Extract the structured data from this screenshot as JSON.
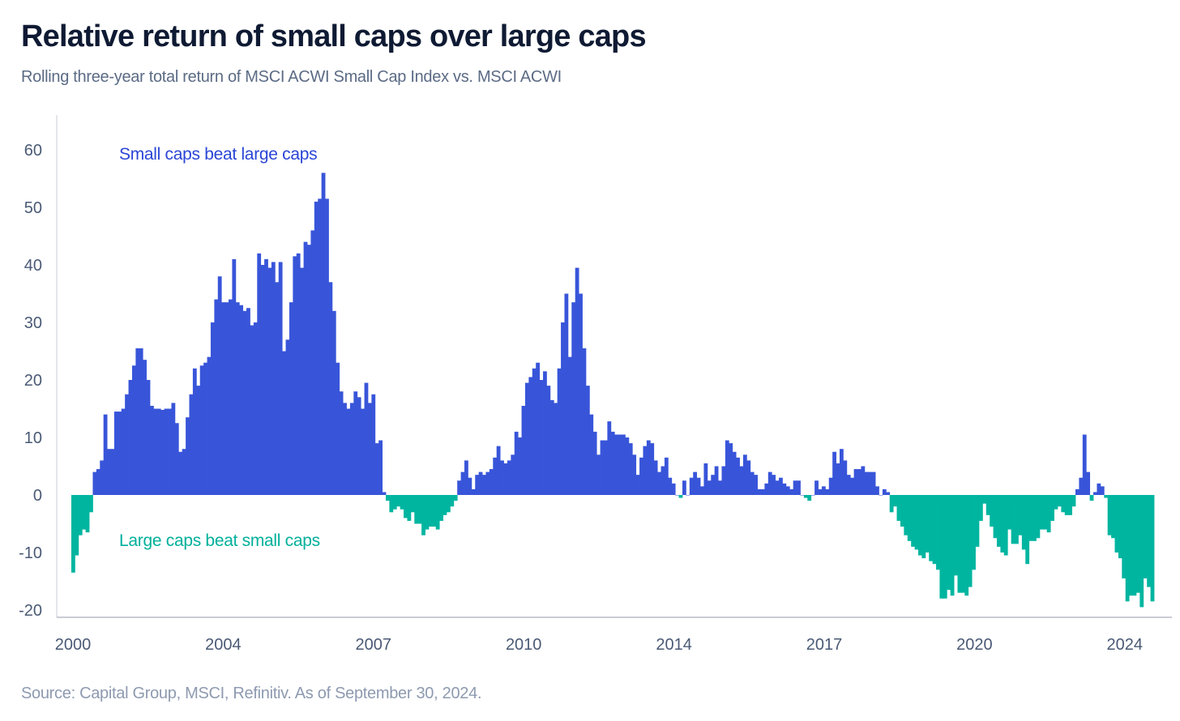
{
  "chart_data": {
    "type": "bar",
    "title": "Relative return of small caps over large caps",
    "subtitle": "Rolling three-year total return of MSCI ACWI Small Cap Index vs. MSCI ACWI",
    "source": "Source: Capital Group, MSCI, Refinitiv. As of September 30, 2024.",
    "xlabel": "",
    "ylabel": "",
    "ylim": [
      -20,
      60
    ],
    "yticks": [
      "60",
      "50",
      "40",
      "30",
      "20",
      "10",
      "0",
      "-10",
      "-20"
    ],
    "ytick_values": [
      60,
      50,
      40,
      30,
      20,
      10,
      0,
      -10,
      -20
    ],
    "xticks": [
      "2000",
      "2004",
      "2007",
      "2010",
      "2014",
      "2017",
      "2020",
      "2024"
    ],
    "annotations": {
      "positive": "Small caps beat large caps",
      "negative": "Large caps beat small caps"
    },
    "colors": {
      "positive": "#3855D9",
      "negative": "#00B5A0"
    },
    "frequency": "monthly, 2000 to Sep 2024 (approximate readings)",
    "values": [
      -13.5,
      -10.5,
      -7,
      -6,
      -6.5,
      -3,
      4,
      4.5,
      6,
      14,
      8,
      8,
      14.5,
      14.5,
      15,
      17.5,
      20,
      22.5,
      25.5,
      25.5,
      23.5,
      20,
      15.5,
      15,
      15,
      14.8,
      15,
      15,
      16,
      12.5,
      7.5,
      8,
      13.5,
      17.5,
      22,
      19,
      22.5,
      23,
      24,
      30,
      34,
      38,
      33.5,
      33.5,
      34,
      41,
      33.5,
      33,
      32,
      32.5,
      29.5,
      30,
      42,
      40,
      41,
      39.5,
      40.5,
      37,
      40.5,
      25,
      27,
      33.5,
      41.5,
      42,
      39.5,
      44,
      43.5,
      46,
      51,
      51.5,
      56,
      51.5,
      37,
      32,
      23,
      18,
      16,
      15,
      16,
      18,
      17,
      15,
      19.5,
      16,
      17.5,
      9,
      9.5,
      0.5,
      -1,
      -3,
      -2.5,
      -2,
      -2.5,
      -4,
      -4.5,
      -3,
      -5,
      -5,
      -7,
      -6,
      -5.5,
      -5.5,
      -6,
      -4.5,
      -3.5,
      -3,
      -2,
      -1,
      2.5,
      4,
      6,
      3,
      1,
      3.5,
      4,
      3.5,
      4,
      4.5,
      6.5,
      8.5,
      6,
      5.5,
      6,
      7,
      11,
      10,
      15.5,
      19.5,
      20.5,
      22,
      23,
      20,
      21.5,
      19,
      16.5,
      16,
      22,
      30,
      35,
      24,
      33.5,
      39.5,
      35,
      25.5,
      19,
      14,
      11,
      7,
      9.5,
      9.5,
      12.8,
      11,
      10.5,
      10.5,
      10.5,
      10,
      9,
      7,
      3.5,
      6.5,
      8.5,
      9.5,
      9,
      6,
      4,
      5,
      6.5,
      3,
      2,
      0,
      -0.5,
      2.5,
      0,
      3,
      4,
      3,
      1.5,
      5.5,
      2.5,
      3.5,
      5,
      2.5,
      5,
      9.5,
      9,
      7.5,
      6.5,
      5,
      7,
      6,
      4,
      3.5,
      1,
      1,
      2,
      4,
      3.5,
      2.5,
      3,
      2,
      1.5,
      1,
      2.5,
      2.5,
      0,
      -0.5,
      -1,
      0,
      2.5,
      1,
      1.5,
      1,
      3,
      7.5,
      5.5,
      8,
      6,
      3.5,
      3,
      4.5,
      4.5,
      5,
      4,
      4,
      4,
      1.5,
      0,
      1,
      0.5,
      -3,
      -2,
      -4.5,
      -5.5,
      -7,
      -8,
      -9,
      -9.5,
      -10.5,
      -11,
      -10,
      -11.5,
      -12,
      -13,
      -18,
      -18,
      -16.5,
      -17.5,
      -14,
      -17,
      -17,
      -17.5,
      -16,
      -13,
      -9,
      -4.5,
      -1.5,
      -3.5,
      -5.5,
      -7.5,
      -9,
      -10,
      -10.5,
      -6,
      -8.5,
      -8.5,
      -7,
      -9.5,
      -12,
      -8,
      -8,
      -7.5,
      -6,
      -6,
      -6.5,
      -4.5,
      -2.5,
      -2,
      -3,
      -3.5,
      -3.5,
      -2,
      1,
      3,
      10.5,
      4,
      -1,
      0.5,
      2,
      1.5,
      -0.5,
      -7,
      -7.5,
      -10,
      -11,
      -14.5,
      -18.5,
      -17.5,
      -17.5,
      -17,
      -19.5,
      -14.5,
      -16,
      -18.5
    ]
  }
}
